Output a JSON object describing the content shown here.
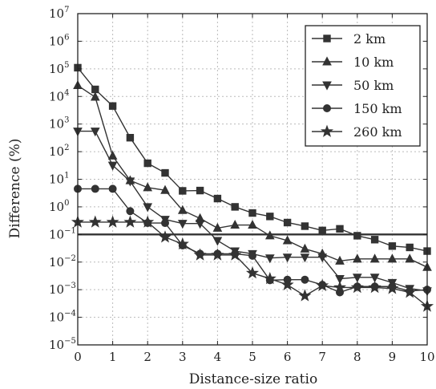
{
  "chart_data": {
    "type": "line",
    "xlabel": "Distance-size ratio",
    "ylabel": "Difference (%)",
    "xlim": [
      0,
      10
    ],
    "ylim_log10": [
      -5,
      7
    ],
    "y_scale": "log",
    "grid": true,
    "legend_position": "top-right",
    "x_ticks": [
      "0",
      "1",
      "2",
      "3",
      "4",
      "5",
      "6",
      "7",
      "8",
      "9",
      "10"
    ],
    "y_ticks": [
      {
        "base": "10",
        "exp": "7"
      },
      {
        "base": "10",
        "exp": "6"
      },
      {
        "base": "10",
        "exp": "5"
      },
      {
        "base": "10",
        "exp": "4"
      },
      {
        "base": "10",
        "exp": "3"
      },
      {
        "base": "10",
        "exp": "2"
      },
      {
        "base": "10",
        "exp": "1"
      },
      {
        "base": "10",
        "exp": "0"
      },
      {
        "base": "10",
        "exp": "−1"
      },
      {
        "base": "10",
        "exp": "−2"
      },
      {
        "base": "10",
        "exp": "−3"
      },
      {
        "base": "10",
        "exp": "−4"
      },
      {
        "base": "10",
        "exp": "−5"
      }
    ],
    "reference_line": {
      "y": 0.1
    },
    "x": [
      0,
      0.5,
      1,
      1.5,
      2,
      2.5,
      3,
      3.5,
      4,
      4.5,
      5,
      5.5,
      6,
      6.5,
      7,
      7.5,
      8,
      8.5,
      9,
      9.5,
      10
    ],
    "series": [
      {
        "name": "2 km",
        "marker": "square",
        "values": [
          110000,
          18000,
          4500,
          320,
          38,
          17,
          3.8,
          3.9,
          2.0,
          1.0,
          0.6,
          0.45,
          0.27,
          0.2,
          0.14,
          0.16,
          0.09,
          0.065,
          0.038,
          0.034,
          0.025
        ]
      },
      {
        "name": "10 km",
        "marker": "triangle-up",
        "values": [
          25000,
          9500,
          70,
          9,
          5,
          4,
          0.75,
          0.38,
          0.17,
          0.22,
          0.22,
          0.09,
          0.06,
          0.03,
          0.02,
          0.011,
          0.013,
          0.013,
          0.013,
          0.013,
          0.0065
        ]
      },
      {
        "name": "50 km",
        "marker": "triangle-down",
        "values": [
          550,
          550,
          32,
          8.5,
          1.0,
          0.35,
          0.25,
          0.25,
          0.06,
          0.025,
          0.02,
          0.014,
          0.015,
          0.015,
          0.015,
          0.0025,
          0.0028,
          0.0028,
          0.0018,
          0.0011,
          0.0009
        ]
      },
      {
        "name": "150 km",
        "marker": "circle",
        "values": [
          4.5,
          4.5,
          4.5,
          0.7,
          0.26,
          0.26,
          0.04,
          0.02,
          0.02,
          0.02,
          0.017,
          0.0022,
          0.0023,
          0.0023,
          0.0015,
          0.0008,
          0.0013,
          0.0013,
          0.0013,
          0.0009,
          0.001
        ]
      },
      {
        "name": "260 km",
        "marker": "star",
        "values": [
          0.28,
          0.28,
          0.28,
          0.28,
          0.28,
          0.08,
          0.045,
          0.018,
          0.018,
          0.018,
          0.004,
          0.0025,
          0.0015,
          0.0006,
          0.0014,
          0.0012,
          0.0012,
          0.0012,
          0.0011,
          0.0008,
          0.00025
        ]
      }
    ]
  }
}
